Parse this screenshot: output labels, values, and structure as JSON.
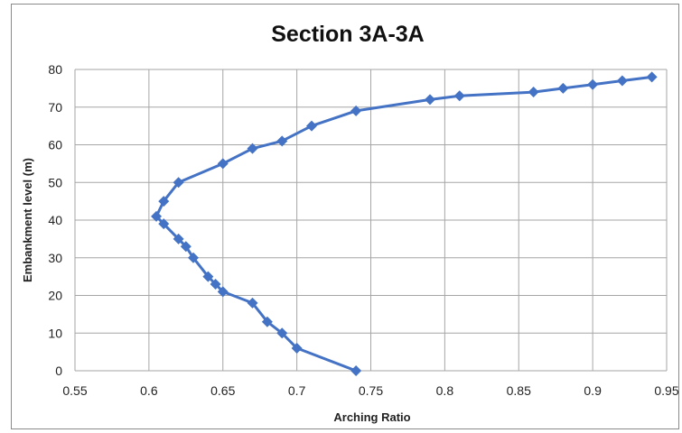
{
  "chart_data": {
    "type": "line",
    "title": "Section 3A-3A",
    "xlabel": "Arching Ratio",
    "ylabel": "Embankment level (m)",
    "xlim": [
      0.55,
      0.95
    ],
    "ylim": [
      0,
      80
    ],
    "x_ticks": [
      "0.55",
      "0.6",
      "0.65",
      "0.7",
      "0.75",
      "0.8",
      "0.85",
      "0.9",
      "0.95"
    ],
    "y_ticks": [
      "0",
      "10",
      "20",
      "30",
      "40",
      "50",
      "60",
      "70",
      "80"
    ],
    "grid": true,
    "legend": "none",
    "series": [
      {
        "color": "#4472c4",
        "marker": "diamond",
        "points": [
          {
            "x": 0.74,
            "y": 0
          },
          {
            "x": 0.7,
            "y": 6
          },
          {
            "x": 0.69,
            "y": 10
          },
          {
            "x": 0.68,
            "y": 13
          },
          {
            "x": 0.67,
            "y": 18
          },
          {
            "x": 0.65,
            "y": 21
          },
          {
            "x": 0.645,
            "y": 23
          },
          {
            "x": 0.64,
            "y": 25
          },
          {
            "x": 0.63,
            "y": 30
          },
          {
            "x": 0.625,
            "y": 33
          },
          {
            "x": 0.62,
            "y": 35
          },
          {
            "x": 0.61,
            "y": 39
          },
          {
            "x": 0.605,
            "y": 41
          },
          {
            "x": 0.61,
            "y": 45
          },
          {
            "x": 0.62,
            "y": 50
          },
          {
            "x": 0.65,
            "y": 55
          },
          {
            "x": 0.67,
            "y": 59
          },
          {
            "x": 0.69,
            "y": 61
          },
          {
            "x": 0.71,
            "y": 65
          },
          {
            "x": 0.74,
            "y": 69
          },
          {
            "x": 0.79,
            "y": 72
          },
          {
            "x": 0.81,
            "y": 73
          },
          {
            "x": 0.86,
            "y": 74
          },
          {
            "x": 0.88,
            "y": 75
          },
          {
            "x": 0.9,
            "y": 76
          },
          {
            "x": 0.92,
            "y": 77
          },
          {
            "x": 0.94,
            "y": 78
          }
        ]
      }
    ]
  }
}
